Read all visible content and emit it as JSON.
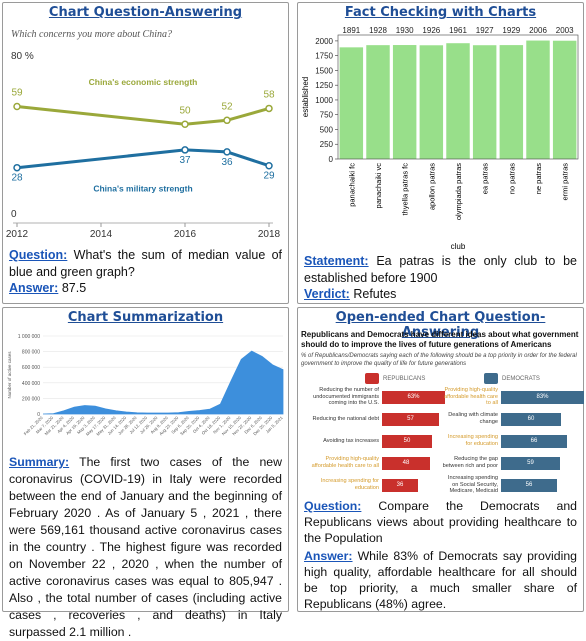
{
  "panels": [
    {
      "title": "Chart Question-Answering",
      "items": [
        {
          "label": "Question:",
          "text": "What's the sum of median value of blue and green graph?"
        },
        {
          "label": "Answer:",
          "text": "87.5"
        }
      ]
    },
    {
      "title": "Fact Checking with Charts",
      "items": [
        {
          "label": "Statement:",
          "text": "Ea patras is the only club to be established before 1900"
        },
        {
          "label": "Verdict:",
          "text": "Refutes"
        }
      ]
    },
    {
      "title": "Chart Summarization",
      "items": [
        {
          "label": "Summary:",
          "text": "The first two cases of the new coronavirus (COVID-19) in Italy were recorded between the end of January and the beginning of February 2020 . As of January 5 , 2021 , there were 569,161 thousand active coronavirus cases in the country . The highest figure was recorded on November 22 , 2020 , when the number of active coronavirus cases was equal to 805,947 . Also , the total number of cases (including active cases , recoveries , and deaths) in Italy surpassed 2.1 million ."
        }
      ]
    },
    {
      "title": "Open-ended Chart Question-Answering",
      "items": [
        {
          "label": "Question:",
          "text": "Compare the Democrats and Republicans views about providing healthcare to the Population"
        },
        {
          "label": "Answer:",
          "text": "While 83% of Democrats say providing high quality, affordable healthcare for all should be top priority, a much smaller share of Republicans (48%) agree."
        }
      ]
    }
  ],
  "chart_data": [
    {
      "type": "line",
      "subtitle": "Which concerns you more about China?",
      "x": [
        2012,
        2016,
        2017,
        2018
      ],
      "xlim": [
        2012,
        2018
      ],
      "xticks": [
        2012,
        2014,
        2016,
        2018
      ],
      "ylim": [
        0,
        80
      ],
      "yticks": [
        0,
        {
          "value": 80,
          "label": "80 %"
        }
      ],
      "series": [
        {
          "name": "China's economic strength",
          "color": "#9aa83a",
          "values": [
            59,
            50,
            52,
            58
          ]
        },
        {
          "name": "China's military strength",
          "color": "#1f6fa0",
          "values": [
            28,
            37,
            36,
            29
          ]
        }
      ]
    },
    {
      "type": "bar",
      "xlabel": "club",
      "ylabel": "established",
      "color": "#98df8a",
      "categories": [
        "panachaiki fc",
        "panachaiki vc",
        "thyella patras fc",
        "apollon patras",
        "olympiada patras",
        "ea patras",
        "no patras",
        "ne patras",
        "ermi patras"
      ],
      "values": [
        1891,
        1928,
        1930,
        1926,
        1961,
        1927,
        1929,
        2006,
        2003
      ],
      "ylim": [
        0,
        2100
      ],
      "yticks": [
        0,
        250,
        500,
        750,
        1000,
        1250,
        1500,
        1750,
        2000
      ]
    },
    {
      "type": "area",
      "ylabel": "Number of active cases",
      "color": "#3d8fdc",
      "categories": [
        "Feb 21, 2020",
        "Mar 7, 2020",
        "Mar 21, 2020",
        "Apr 4, 2020",
        "Apr 19, 2020",
        "May 3, 2020",
        "May 17, 2020",
        "May 31, 2020",
        "Jun 14, 2020",
        "Jun 28, 2020",
        "Jul 12, 2020",
        "Jul 26, 2020",
        "Aug 9, 2020",
        "Aug 23, 2020",
        "Sep 6, 2020",
        "Sep 20, 2020",
        "Oct 4, 2020",
        "Oct 18, 2020",
        "Nov 1, 2020",
        "Nov 15, 2020",
        "Nov 22, 2020",
        "Dec 6, 2020",
        "Dec 20, 2020",
        "Jan 5, 2021"
      ],
      "values": [
        0,
        4600,
        42000,
        88000,
        108000,
        100000,
        66000,
        42000,
        26000,
        15000,
        13000,
        12500,
        13000,
        18000,
        33000,
        45000,
        62000,
        127000,
        419000,
        700000,
        805947,
        737000,
        630000,
        569161
      ],
      "ylim": [
        0,
        1000000
      ],
      "yticks": [
        {
          "value": 0,
          "label": "0"
        },
        {
          "value": 200000,
          "label": "200 000"
        },
        {
          "value": 400000,
          "label": "400 000"
        },
        {
          "value": 600000,
          "label": "600 000"
        },
        {
          "value": 800000,
          "label": "800 000"
        },
        {
          "value": 1000000,
          "label": "1 000 000"
        }
      ]
    },
    {
      "type": "bar",
      "orientation": "horizontal",
      "title": "Republicans and Democrats have different ideas about what government should do to improve the lives of future generations of Americans",
      "subtitle": "% of Republicans/Democrats saying each of the following should be a top priority in order for the federal government to improve the quality of life for future generations",
      "xlim": [
        0,
        100
      ],
      "series": [
        {
          "name": "REPUBLICANS",
          "color": "#c9302c",
          "categories": [
            "Reducing the number of undocumented immigrants coming into the U.S.",
            "Reducing the national debt",
            "Avoiding tax increases",
            "Providing high-quality affordable health care to all",
            "Increasing spending for education"
          ],
          "values": [
            63,
            57,
            50,
            48,
            36
          ],
          "value_labels": [
            "63%",
            "57",
            "50",
            "48",
            "36"
          ],
          "label_colors": [
            "#333333",
            "#333333",
            "#333333",
            "#d49a2a",
            "#d49a2a"
          ]
        },
        {
          "name": "DEMOCRATS",
          "color": "#3e6b8c",
          "categories": [
            "Providing high-quality affordable health care to all",
            "Dealing with climate change",
            "Increasing spending for education",
            "Reducing the gap between rich and poor",
            "Increasing spending on Social Security, Medicare, Medicaid"
          ],
          "values": [
            83,
            60,
            66,
            59,
            56
          ],
          "value_labels": [
            "83%",
            "60",
            "66",
            "59",
            "56"
          ],
          "label_colors": [
            "#d49a2a",
            "#333333",
            "#d49a2a",
            "#333333",
            "#333333"
          ]
        }
      ]
    }
  ]
}
